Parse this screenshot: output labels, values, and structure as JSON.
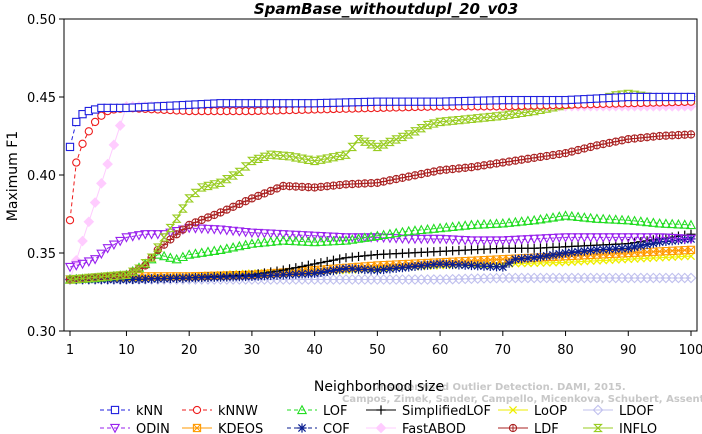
{
  "chart_data": {
    "type": "line",
    "title": "SpamBase_withoutdupl_20_v03",
    "xlabel": "Neighborhood size",
    "ylabel": "Maximum F1",
    "xlim": [
      1,
      100
    ],
    "ylim": [
      0.3,
      0.5
    ],
    "xticks": [
      1,
      10,
      20,
      30,
      40,
      50,
      60,
      70,
      80,
      90,
      100
    ],
    "yticks": [
      "0.30",
      "0.35",
      "0.40",
      "0.45",
      "0.50"
    ],
    "grid": false,
    "legend_position": "bottom",
    "watermark": [
      "Campos, Zimek, Sander, Campello, Micenkova, Schubert, Assent, Houle",
      "Unsupervised Outlier Detection. DAMI, 2015."
    ],
    "series": [
      {
        "name": "kNN",
        "color": "#1f1fdf",
        "marker": "square",
        "dash": "4,3",
        "points": [
          [
            1,
            0.418
          ],
          [
            2,
            0.434
          ],
          [
            3,
            0.439
          ],
          [
            4,
            0.441
          ],
          [
            5,
            0.442
          ],
          [
            6,
            0.443
          ],
          [
            8,
            0.443
          ],
          [
            10,
            0.443
          ],
          [
            15,
            0.444
          ],
          [
            20,
            0.445
          ],
          [
            25,
            0.446
          ],
          [
            30,
            0.446
          ],
          [
            40,
            0.446
          ],
          [
            50,
            0.447
          ],
          [
            60,
            0.447
          ],
          [
            70,
            0.448
          ],
          [
            80,
            0.448
          ],
          [
            90,
            0.45
          ],
          [
            100,
            0.45
          ]
        ]
      },
      {
        "name": "kNNW",
        "color": "#ee1c1c",
        "marker": "circle",
        "dash": "4,3",
        "points": [
          [
            1,
            0.371
          ],
          [
            2,
            0.408
          ],
          [
            3,
            0.42
          ],
          [
            4,
            0.428
          ],
          [
            5,
            0.434
          ],
          [
            6,
            0.438
          ],
          [
            7,
            0.441
          ],
          [
            8,
            0.442
          ],
          [
            10,
            0.443
          ],
          [
            15,
            0.442
          ],
          [
            20,
            0.441
          ],
          [
            25,
            0.441
          ],
          [
            30,
            0.441
          ],
          [
            40,
            0.442
          ],
          [
            50,
            0.443
          ],
          [
            60,
            0.444
          ],
          [
            70,
            0.444
          ],
          [
            80,
            0.445
          ],
          [
            90,
            0.446
          ],
          [
            100,
            0.447
          ]
        ]
      },
      {
        "name": "LOF",
        "color": "#22dd22",
        "marker": "triangle",
        "dash": "4,3",
        "points": [
          [
            1,
            0.333
          ],
          [
            5,
            0.334
          ],
          [
            10,
            0.336
          ],
          [
            13,
            0.343
          ],
          [
            15,
            0.349
          ],
          [
            18,
            0.346
          ],
          [
            20,
            0.349
          ],
          [
            25,
            0.352
          ],
          [
            30,
            0.356
          ],
          [
            35,
            0.358
          ],
          [
            40,
            0.357
          ],
          [
            45,
            0.358
          ],
          [
            50,
            0.361
          ],
          [
            55,
            0.364
          ],
          [
            60,
            0.366
          ],
          [
            65,
            0.368
          ],
          [
            70,
            0.369
          ],
          [
            75,
            0.371
          ],
          [
            80,
            0.374
          ],
          [
            85,
            0.372
          ],
          [
            90,
            0.371
          ],
          [
            95,
            0.369
          ],
          [
            100,
            0.368
          ]
        ]
      },
      {
        "name": "SimplifiedLOF",
        "color": "#000000",
        "marker": "plus",
        "dash": "",
        "points": [
          [
            1,
            0.333
          ],
          [
            10,
            0.333
          ],
          [
            20,
            0.334
          ],
          [
            25,
            0.335
          ],
          [
            30,
            0.336
          ],
          [
            35,
            0.339
          ],
          [
            40,
            0.343
          ],
          [
            45,
            0.347
          ],
          [
            50,
            0.349
          ],
          [
            55,
            0.35
          ],
          [
            60,
            0.351
          ],
          [
            65,
            0.352
          ],
          [
            70,
            0.353
          ],
          [
            75,
            0.353
          ],
          [
            80,
            0.354
          ],
          [
            85,
            0.355
          ],
          [
            90,
            0.356
          ],
          [
            95,
            0.359
          ],
          [
            100,
            0.362
          ]
        ]
      },
      {
        "name": "LoOP",
        "color": "#eeee00",
        "marker": "x",
        "dash": "",
        "points": [
          [
            1,
            0.333
          ],
          [
            10,
            0.334
          ],
          [
            20,
            0.335
          ],
          [
            30,
            0.337
          ],
          [
            40,
            0.338
          ],
          [
            50,
            0.34
          ],
          [
            60,
            0.342
          ],
          [
            70,
            0.343
          ],
          [
            80,
            0.344
          ],
          [
            90,
            0.346
          ],
          [
            100,
            0.348
          ]
        ]
      },
      {
        "name": "LDOF",
        "color": "#c0c0ee",
        "marker": "diamond",
        "dash": "",
        "points": [
          [
            1,
            0.333
          ],
          [
            10,
            0.333
          ],
          [
            20,
            0.333
          ],
          [
            30,
            0.333
          ],
          [
            40,
            0.333
          ],
          [
            50,
            0.333
          ],
          [
            60,
            0.333
          ],
          [
            70,
            0.334
          ],
          [
            80,
            0.334
          ],
          [
            90,
            0.334
          ],
          [
            100,
            0.334
          ]
        ]
      },
      {
        "name": "ODIN",
        "color": "#9922ee",
        "marker": "triangle-down",
        "dash": "4,3",
        "points": [
          [
            1,
            0.341
          ],
          [
            3,
            0.343
          ],
          [
            5,
            0.346
          ],
          [
            7,
            0.353
          ],
          [
            10,
            0.36
          ],
          [
            13,
            0.362
          ],
          [
            16,
            0.362
          ],
          [
            20,
            0.366
          ],
          [
            25,
            0.365
          ],
          [
            30,
            0.363
          ],
          [
            35,
            0.362
          ],
          [
            40,
            0.361
          ],
          [
            45,
            0.36
          ],
          [
            50,
            0.36
          ],
          [
            55,
            0.359
          ],
          [
            60,
            0.359
          ],
          [
            65,
            0.358
          ],
          [
            70,
            0.358
          ],
          [
            75,
            0.359
          ],
          [
            80,
            0.36
          ],
          [
            85,
            0.36
          ],
          [
            90,
            0.36
          ],
          [
            95,
            0.36
          ],
          [
            100,
            0.359
          ]
        ]
      },
      {
        "name": "KDEOS",
        "color": "#ff9900",
        "marker": "square-x",
        "dash": "",
        "points": [
          [
            1,
            0.333
          ],
          [
            10,
            0.335
          ],
          [
            20,
            0.335
          ],
          [
            30,
            0.336
          ],
          [
            40,
            0.339
          ],
          [
            50,
            0.342
          ],
          [
            60,
            0.344
          ],
          [
            70,
            0.346
          ],
          [
            80,
            0.348
          ],
          [
            90,
            0.35
          ],
          [
            100,
            0.352
          ]
        ]
      },
      {
        "name": "COF",
        "color": "#0a1e90",
        "marker": "asterisk",
        "dash": "4,3",
        "points": [
          [
            1,
            0.333
          ],
          [
            10,
            0.333
          ],
          [
            20,
            0.334
          ],
          [
            30,
            0.335
          ],
          [
            35,
            0.336
          ],
          [
            40,
            0.337
          ],
          [
            45,
            0.34
          ],
          [
            50,
            0.339
          ],
          [
            55,
            0.341
          ],
          [
            60,
            0.343
          ],
          [
            65,
            0.342
          ],
          [
            70,
            0.341
          ],
          [
            72,
            0.346
          ],
          [
            75,
            0.347
          ],
          [
            80,
            0.35
          ],
          [
            85,
            0.352
          ],
          [
            90,
            0.353
          ],
          [
            95,
            0.357
          ],
          [
            100,
            0.359
          ]
        ]
      },
      {
        "name": "FastABOD",
        "color": "#ffccff",
        "marker": "diamond-filled",
        "dash": "",
        "points": [
          [
            1,
            0.333
          ],
          [
            10,
            0.444
          ],
          [
            20,
            0.444
          ],
          [
            30,
            0.444
          ],
          [
            40,
            0.444
          ],
          [
            50,
            0.444
          ],
          [
            60,
            0.444
          ],
          [
            70,
            0.444
          ],
          [
            80,
            0.444
          ],
          [
            90,
            0.444
          ],
          [
            100,
            0.444
          ]
        ]
      },
      {
        "name": "LDF",
        "color": "#aa2222",
        "marker": "circle-plus",
        "dash": "",
        "points": [
          [
            1,
            0.333
          ],
          [
            10,
            0.336
          ],
          [
            13,
            0.342
          ],
          [
            15,
            0.352
          ],
          [
            18,
            0.362
          ],
          [
            20,
            0.368
          ],
          [
            25,
            0.376
          ],
          [
            30,
            0.385
          ],
          [
            35,
            0.393
          ],
          [
            40,
            0.392
          ],
          [
            45,
            0.394
          ],
          [
            50,
            0.395
          ],
          [
            55,
            0.399
          ],
          [
            60,
            0.403
          ],
          [
            65,
            0.405
          ],
          [
            70,
            0.408
          ],
          [
            75,
            0.411
          ],
          [
            80,
            0.414
          ],
          [
            85,
            0.419
          ],
          [
            90,
            0.423
          ],
          [
            95,
            0.425
          ],
          [
            100,
            0.426
          ]
        ]
      },
      {
        "name": "INFLO",
        "color": "#99cc22",
        "marker": "hourglass",
        "dash": "",
        "points": [
          [
            1,
            0.333
          ],
          [
            10,
            0.336
          ],
          [
            12,
            0.34
          ],
          [
            14,
            0.347
          ],
          [
            16,
            0.36
          ],
          [
            18,
            0.372
          ],
          [
            20,
            0.385
          ],
          [
            22,
            0.392
          ],
          [
            25,
            0.395
          ],
          [
            28,
            0.402
          ],
          [
            30,
            0.409
          ],
          [
            33,
            0.413
          ],
          [
            36,
            0.412
          ],
          [
            40,
            0.409
          ],
          [
            45,
            0.413
          ],
          [
            47,
            0.423
          ],
          [
            50,
            0.418
          ],
          [
            55,
            0.426
          ],
          [
            58,
            0.432
          ],
          [
            60,
            0.434
          ],
          [
            65,
            0.436
          ],
          [
            70,
            0.438
          ],
          [
            75,
            0.441
          ],
          [
            80,
            0.445
          ],
          [
            85,
            0.448
          ],
          [
            88,
            0.451
          ],
          [
            90,
            0.452
          ],
          [
            95,
            0.449
          ],
          [
            100,
            0.448
          ]
        ]
      }
    ]
  }
}
